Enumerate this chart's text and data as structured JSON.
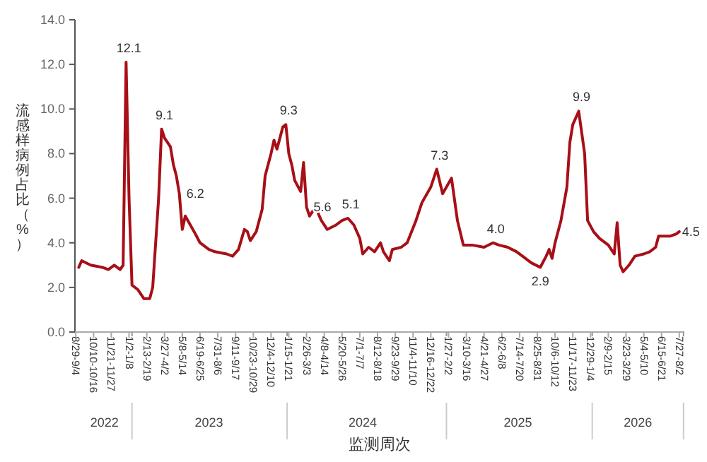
{
  "chart_data": {
    "type": "line",
    "xlabel": "监测周次",
    "ylabel": "流感样病例占比（%）",
    "ylim": [
      0,
      14
    ],
    "yticks": [
      {
        "value": 0,
        "label": "0.0"
      },
      {
        "value": 2,
        "label": "2.0"
      },
      {
        "value": 4,
        "label": "4.0"
      },
      {
        "value": 6,
        "label": "6.0"
      },
      {
        "value": 8,
        "label": "8.0"
      },
      {
        "value": 10,
        "label": "10.0"
      },
      {
        "value": 12,
        "label": "12.0"
      },
      {
        "value": 14,
        "label": "14.0"
      }
    ],
    "xlim": [
      "2022-08-27",
      "2026-08-08"
    ],
    "xticks": [
      {
        "value": "2022-08-29",
        "label": "8/29-9/4"
      },
      {
        "value": "2022-10-10",
        "label": "10/10-10/16"
      },
      {
        "value": "2022-11-21",
        "label": "11/21-11/27"
      },
      {
        "value": "2023-01-02",
        "label": "1/2-1/8"
      },
      {
        "value": "2023-02-13",
        "label": "2/13-2/19"
      },
      {
        "value": "2023-03-27",
        "label": "3/27-4/2"
      },
      {
        "value": "2023-05-08",
        "label": "5/8-5/14"
      },
      {
        "value": "2023-06-19",
        "label": "6/19-6/25"
      },
      {
        "value": "2023-07-31",
        "label": "7/31-8/6"
      },
      {
        "value": "2023-09-11",
        "label": "9/11-9/17"
      },
      {
        "value": "2023-10-23",
        "label": "10/23-10/29"
      },
      {
        "value": "2023-12-04",
        "label": "12/4-12/10"
      },
      {
        "value": "2024-01-15",
        "label": "1/15-1/21"
      },
      {
        "value": "2024-02-26",
        "label": "2/26-3/3"
      },
      {
        "value": "2024-04-08",
        "label": "4/8-4/14"
      },
      {
        "value": "2024-05-20",
        "label": "5/20-5/26"
      },
      {
        "value": "2024-07-01",
        "label": "7/1-7/7"
      },
      {
        "value": "2024-08-12",
        "label": "8/12-8/18"
      },
      {
        "value": "2024-09-23",
        "label": "9/23-9/29"
      },
      {
        "value": "2024-11-04",
        "label": "11/4-11/10"
      },
      {
        "value": "2024-12-16",
        "label": "12/16-12/22"
      },
      {
        "value": "2025-01-27",
        "label": "1/27-2/2"
      },
      {
        "value": "2025-03-10",
        "label": "3/10-3/16"
      },
      {
        "value": "2025-04-21",
        "label": "4/21-4/27"
      },
      {
        "value": "2025-06-02",
        "label": "6/2-6/8"
      },
      {
        "value": "2025-07-14",
        "label": "7/14-7/20"
      },
      {
        "value": "2025-08-25",
        "label": "8/25-8/31"
      },
      {
        "value": "2025-10-06",
        "label": "10/6-10/12"
      },
      {
        "value": "2025-11-17",
        "label": "11/17-11/23"
      },
      {
        "value": "2025-12-29",
        "label": "12/29-1/4"
      },
      {
        "value": "2026-02-09",
        "label": "2/9-2/15"
      },
      {
        "value": "2026-03-23",
        "label": "3/23-3/29"
      },
      {
        "value": "2026-05-04",
        "label": "5/4-5/10"
      },
      {
        "value": "2026-06-15",
        "label": "6/15-6/21"
      },
      {
        "value": "2026-07-27",
        "label": "7/27-8/2"
      }
    ],
    "x2lim": [
      "2022-08-27",
      "2026-08-08"
    ],
    "x2ticks": [
      {
        "value": "2022-11-05",
        "label": "2022"
      },
      {
        "value": "2023-01-09",
        "label": null
      },
      {
        "value": "2023-07-10",
        "label": "2023"
      },
      {
        "value": "2024-01-11",
        "label": null
      },
      {
        "value": "2024-07-08",
        "label": "2024"
      },
      {
        "value": "2025-01-22",
        "label": null
      },
      {
        "value": "2025-07-10",
        "label": "2025"
      },
      {
        "value": "2026-01-02",
        "label": null
      },
      {
        "value": "2026-04-20",
        "label": "2026"
      },
      {
        "value": "2026-08-06",
        "label": null
      }
    ],
    "grid": false,
    "series": [
      {
        "color": "#a80f17",
        "x": [
          "2022-09-05",
          "2022-09-12",
          "2022-10-03",
          "2022-10-31",
          "2022-11-14",
          "2022-11-28",
          "2022-12-12",
          "2022-12-19",
          "2022-12-26",
          "2023-01-02",
          "2023-01-09",
          "2023-01-23",
          "2023-02-06",
          "2023-02-20",
          "2023-02-27",
          "2023-03-13",
          "2023-03-20",
          "2023-03-27",
          "2023-04-03",
          "2023-04-10",
          "2023-04-17",
          "2023-04-24",
          "2023-05-01",
          "2023-05-08",
          "2023-05-15",
          "2023-06-05",
          "2023-06-19",
          "2023-07-10",
          "2023-07-24",
          "2023-08-21",
          "2023-09-04",
          "2023-09-18",
          "2023-10-02",
          "2023-10-09",
          "2023-10-16",
          "2023-10-30",
          "2023-11-13",
          "2023-11-20",
          "2023-12-04",
          "2023-12-11",
          "2023-12-18",
          "2024-01-01",
          "2024-01-08",
          "2024-01-15",
          "2024-01-22",
          "2024-01-29",
          "2024-02-12",
          "2024-02-19",
          "2024-02-26",
          "2024-03-04",
          "2024-03-18",
          "2024-04-01",
          "2024-04-15",
          "2024-05-06",
          "2024-05-20",
          "2024-06-03",
          "2024-06-17",
          "2024-07-01",
          "2024-07-08",
          "2024-07-22",
          "2024-08-05",
          "2024-08-19",
          "2024-08-26",
          "2024-09-09",
          "2024-09-16",
          "2024-10-07",
          "2024-10-21",
          "2024-11-11",
          "2024-11-25",
          "2024-12-16",
          "2024-12-30",
          "2025-01-13",
          "2025-02-03",
          "2025-02-17",
          "2025-03-03",
          "2025-03-24",
          "2025-04-21",
          "2025-05-12",
          "2025-05-26",
          "2025-06-16",
          "2025-07-07",
          "2025-07-21",
          "2025-08-11",
          "2025-09-01",
          "2025-09-15",
          "2025-09-22",
          "2025-09-29",
          "2025-10-06",
          "2025-10-20",
          "2025-11-03",
          "2025-11-10",
          "2025-11-17",
          "2025-12-01",
          "2025-12-15",
          "2025-12-22",
          "2026-01-05",
          "2026-01-19",
          "2026-02-09",
          "2026-02-23",
          "2026-03-02",
          "2026-03-09",
          "2026-03-16",
          "2026-03-30",
          "2026-04-13",
          "2026-05-04",
          "2026-05-18",
          "2026-06-01",
          "2026-06-08",
          "2026-06-22",
          "2026-07-06",
          "2026-07-20",
          "2026-07-27"
        ],
        "values": [
          2.9,
          3.2,
          3.0,
          2.9,
          2.8,
          3.0,
          2.8,
          3.0,
          12.1,
          6.0,
          2.1,
          1.9,
          1.5,
          1.5,
          2.0,
          6.0,
          9.1,
          8.7,
          8.5,
          8.3,
          7.5,
          7.0,
          6.2,
          4.6,
          5.2,
          4.5,
          4.0,
          3.7,
          3.6,
          3.5,
          3.4,
          3.7,
          4.6,
          4.5,
          4.1,
          4.5,
          5.5,
          7.0,
          8.0,
          8.6,
          8.2,
          9.2,
          9.3,
          8.0,
          7.5,
          6.8,
          6.3,
          7.6,
          5.6,
          5.2,
          5.6,
          5.0,
          4.6,
          4.8,
          5.0,
          5.1,
          4.8,
          4.2,
          3.5,
          3.8,
          3.6,
          4.0,
          3.6,
          3.2,
          3.7,
          3.8,
          4.0,
          5.0,
          5.8,
          6.5,
          7.3,
          6.2,
          6.9,
          5.0,
          3.9,
          3.9,
          3.8,
          4.0,
          3.9,
          3.8,
          3.6,
          3.4,
          3.1,
          2.9,
          3.4,
          3.7,
          3.3,
          4.0,
          5.0,
          6.5,
          8.5,
          9.3,
          9.9,
          8.0,
          5.0,
          4.5,
          4.2,
          3.9,
          3.5,
          4.9,
          3.0,
          2.7,
          3.0,
          3.4,
          3.5,
          3.6,
          3.8,
          4.3,
          4.3,
          4.3,
          4.4,
          4.5
        ]
      }
    ],
    "annotations": [
      {
        "text": "12.1",
        "x": "2022-12-26",
        "y": 12.1
      },
      {
        "text": "9.1",
        "x": "2023-03-20",
        "y": 9.1
      },
      {
        "text": "6.2",
        "x": "2023-05-01",
        "y": 6.2
      },
      {
        "text": "9.3",
        "x": "2024-01-08",
        "y": 9.3
      },
      {
        "text": "5.6",
        "x": "2024-02-26",
        "y": 5.6
      },
      {
        "text": "5.1",
        "x": "2024-06-03",
        "y": 5.1
      },
      {
        "text": "7.3",
        "x": "2024-12-30",
        "y": 7.3
      },
      {
        "text": "4.0",
        "x": "2025-05-12",
        "y": 4.0
      },
      {
        "text": "9.9",
        "x": "2025-12-01",
        "y": 9.9
      },
      {
        "text": "2.9",
        "x": "2025-09-01",
        "y": 2.9
      },
      {
        "text": "4.5",
        "x": "2026-07-27",
        "y": 4.5
      }
    ]
  }
}
